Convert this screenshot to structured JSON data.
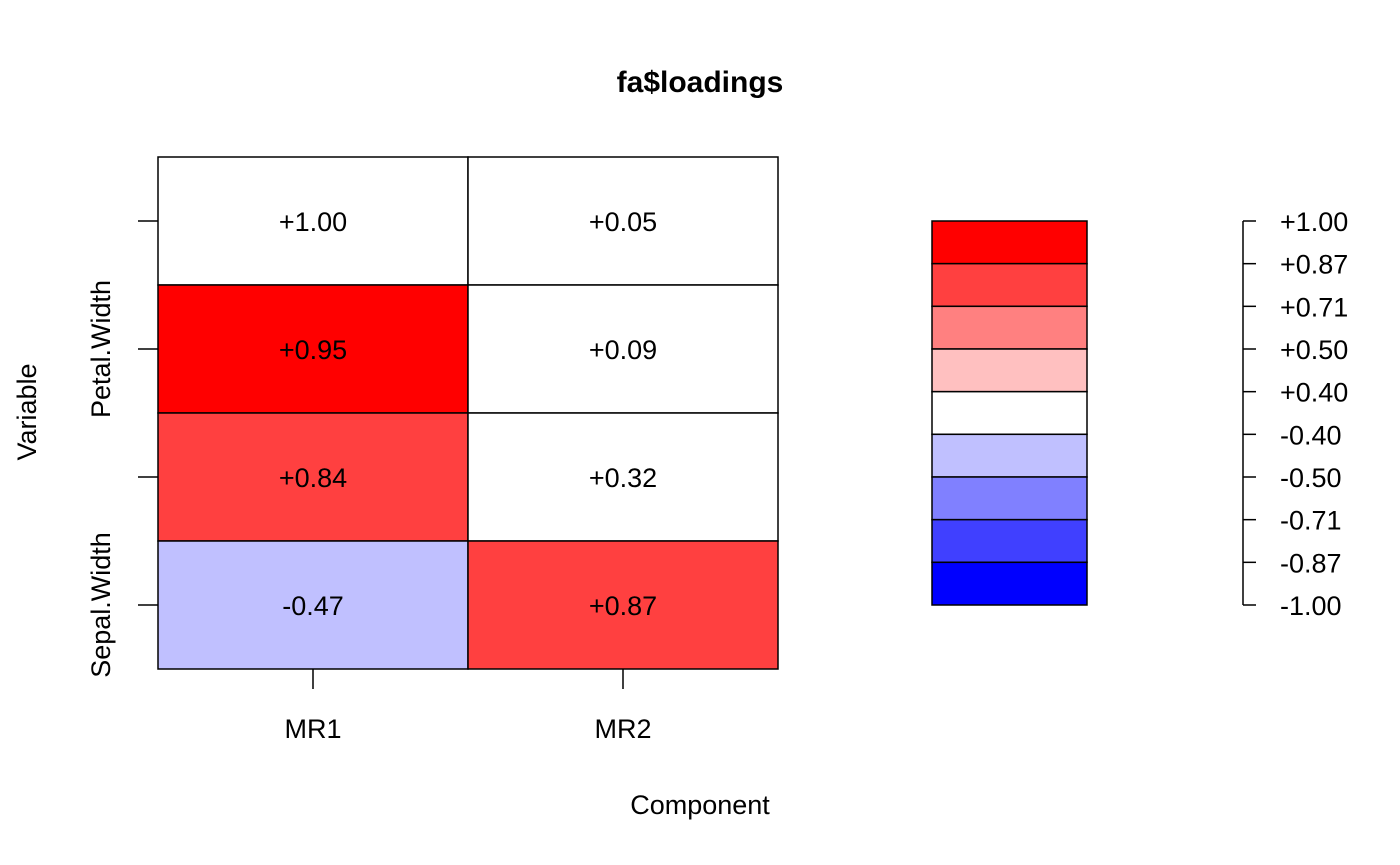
{
  "chart_data": {
    "type": "heatmap",
    "title": "fa$loadings",
    "xlabel": "Component",
    "ylabel": "Variable",
    "columns": [
      "MR1",
      "MR2"
    ],
    "row_tick_labels": [
      "",
      "Petal.Width",
      "",
      "Sepal.Width"
    ],
    "rows": [
      {
        "values": [
          1.0,
          0.05
        ],
        "labels": [
          "+1.00",
          "+0.05"
        ]
      },
      {
        "values": [
          0.95,
          0.09
        ],
        "labels": [
          "+0.95",
          "+0.09"
        ]
      },
      {
        "values": [
          0.84,
          0.32
        ],
        "labels": [
          "+0.84",
          "+0.32"
        ]
      },
      {
        "values": [
          -0.47,
          0.87
        ],
        "labels": [
          "-0.47",
          "+0.87"
        ]
      }
    ],
    "cell_colors": [
      [
        "#FFFFFF",
        "#FFFFFF"
      ],
      [
        "#FF0000",
        "#FFFFFF"
      ],
      [
        "#FF4040",
        "#FFFFFF"
      ],
      [
        "#C0C0FF",
        "#FF4040"
      ]
    ],
    "legend": {
      "breaks": [
        "+1.00",
        "+0.87",
        "+0.71",
        "+0.50",
        "+0.40",
        "-0.40",
        "-0.50",
        "-0.71",
        "-0.87",
        "-1.00"
      ],
      "colors": [
        "#FF0000",
        "#FF4040",
        "#FF8080",
        "#FFC0C0",
        "#FFFFFF",
        "#C0C0FF",
        "#8080FF",
        "#4040FF",
        "#0000FF"
      ]
    }
  }
}
